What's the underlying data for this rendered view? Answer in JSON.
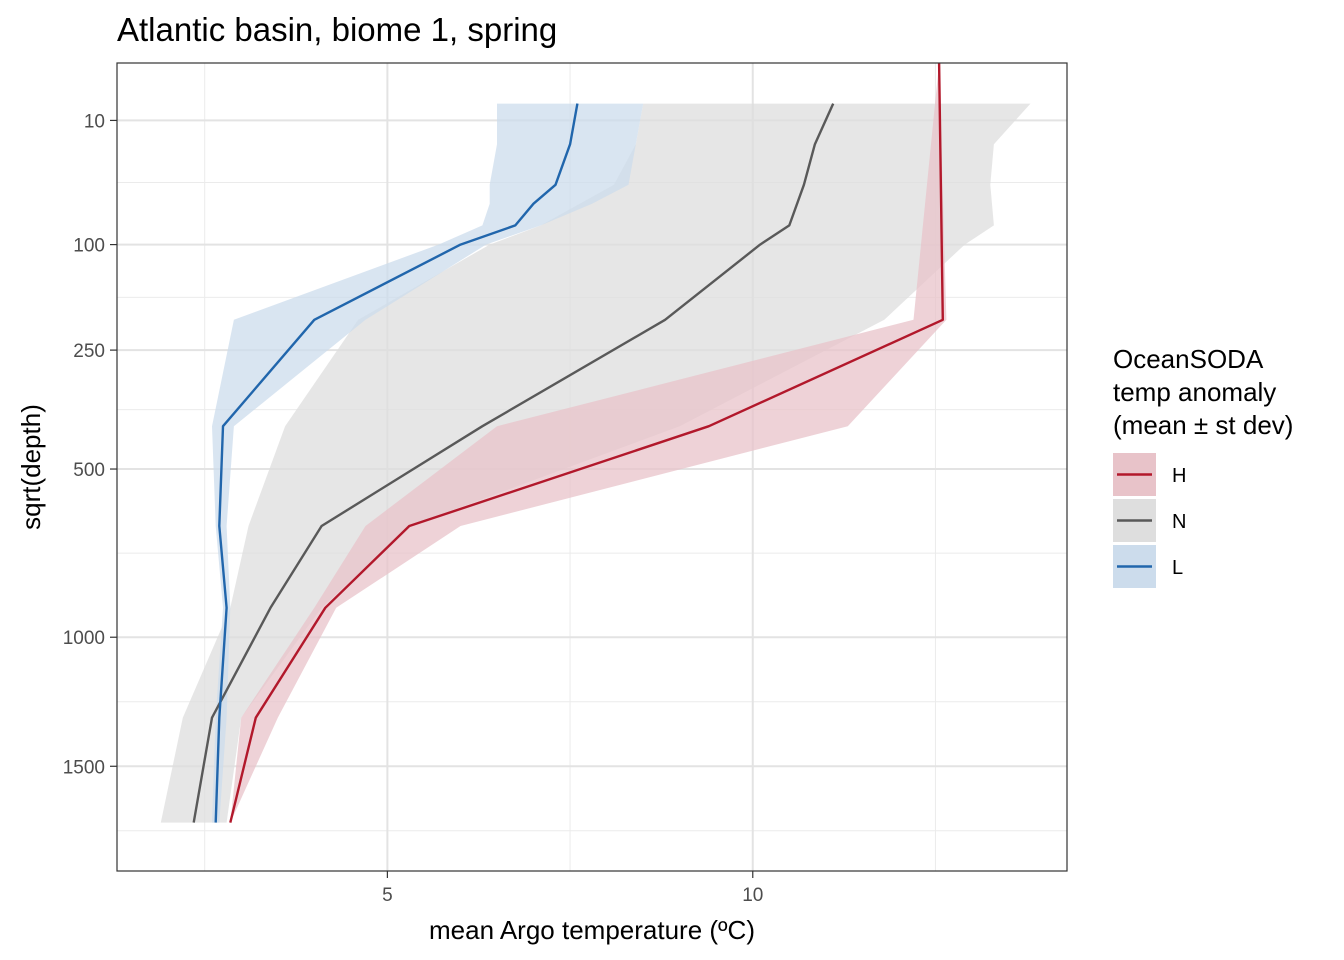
{
  "chart_data": {
    "type": "line",
    "title": "Atlantic basin, biome 1, spring",
    "xlabel": "mean Argo temperature (ºC)",
    "ylabel": "sqrt(depth)",
    "x_scale": "linear",
    "y_scale": "sqrt",
    "y_reversed": true,
    "xlim": [
      1.3,
      14.3
    ],
    "ylim": [
      0.0,
      1980
    ],
    "x_ticks": [
      5,
      10
    ],
    "y_ticks": [
      10,
      100,
      250,
      500,
      1000,
      1500
    ],
    "grid": true,
    "legend": {
      "title": [
        "OceanSODA",
        "temp anomaly",
        "(mean ± st dev)"
      ],
      "position": "right"
    },
    "series": [
      {
        "name": "H",
        "color": "#B2182B",
        "band_color": "#E8C3C9",
        "points": [
          {
            "depth": 0.0,
            "mean": 12.55,
            "sd_low": 12.55,
            "sd_high": 12.55
          },
          {
            "depth": 200,
            "mean": 12.6,
            "sd_low": 12.2,
            "sd_high": 12.65
          },
          {
            "depth": 400,
            "mean": 9.4,
            "sd_low": 6.5,
            "sd_high": 11.3
          },
          {
            "depth": 650,
            "mean": 5.3,
            "sd_low": 4.7,
            "sd_high": 6.0
          },
          {
            "depth": 900,
            "mean": 4.15,
            "sd_low": 4.0,
            "sd_high": 4.3
          },
          {
            "depth": 1300,
            "mean": 3.2,
            "sd_low": 3.0,
            "sd_high": 3.5
          },
          {
            "depth": 1750,
            "mean": 2.85,
            "sd_low": 2.85,
            "sd_high": 2.85
          }
        ]
      },
      {
        "name": "N",
        "color": "#595959",
        "band_color": "#DEDEDE",
        "points": [
          {
            "depth": 5,
            "mean": 11.1,
            "sd_low": 8.5,
            "sd_high": 13.8
          },
          {
            "depth": 20,
            "mean": 10.85,
            "sd_low": 8.4,
            "sd_high": 13.3
          },
          {
            "depth": 45,
            "mean": 10.7,
            "sd_low": 8.1,
            "sd_high": 13.25
          },
          {
            "depth": 80,
            "mean": 10.5,
            "sd_low": 7.1,
            "sd_high": 13.3
          },
          {
            "depth": 100,
            "mean": 10.1,
            "sd_low": 6.4,
            "sd_high": 12.9
          },
          {
            "depth": 200,
            "mean": 8.8,
            "sd_low": 4.6,
            "sd_high": 11.8
          },
          {
            "depth": 400,
            "mean": 6.3,
            "sd_low": 3.6,
            "sd_high": 9.0
          },
          {
            "depth": 650,
            "mean": 4.1,
            "sd_low": 3.1,
            "sd_high": 5.3
          },
          {
            "depth": 900,
            "mean": 3.4,
            "sd_low": 2.85,
            "sd_high": 4.1
          },
          {
            "depth": 1300,
            "mean": 2.6,
            "sd_low": 2.2,
            "sd_high": 3.0
          },
          {
            "depth": 1750,
            "mean": 2.35,
            "sd_low": 1.9,
            "sd_high": 2.8
          }
        ]
      },
      {
        "name": "L",
        "color": "#2166AC",
        "band_color": "#CCDCEC",
        "points": [
          {
            "depth": 5,
            "mean": 7.6,
            "sd_low": 6.5,
            "sd_high": 8.5
          },
          {
            "depth": 20,
            "mean": 7.5,
            "sd_low": 6.5,
            "sd_high": 8.4
          },
          {
            "depth": 45,
            "mean": 7.3,
            "sd_low": 6.4,
            "sd_high": 8.3
          },
          {
            "depth": 60,
            "mean": 7.0,
            "sd_low": 6.4,
            "sd_high": 7.8
          },
          {
            "depth": 80,
            "mean": 6.75,
            "sd_low": 6.3,
            "sd_high": 7.1
          },
          {
            "depth": 100,
            "mean": 6.0,
            "sd_low": 5.7,
            "sd_high": 6.35
          },
          {
            "depth": 200,
            "mean": 4.0,
            "sd_low": 2.9,
            "sd_high": 4.7
          },
          {
            "depth": 400,
            "mean": 2.75,
            "sd_low": 2.6,
            "sd_high": 2.9
          },
          {
            "depth": 650,
            "mean": 2.7,
            "sd_low": 2.65,
            "sd_high": 2.8
          },
          {
            "depth": 900,
            "mean": 2.8,
            "sd_low": 2.75,
            "sd_high": 2.85
          },
          {
            "depth": 1300,
            "mean": 2.7,
            "sd_low": 2.65,
            "sd_high": 2.8
          },
          {
            "depth": 1750,
            "mean": 2.65,
            "sd_low": 2.6,
            "sd_high": 2.7
          }
        ]
      }
    ]
  }
}
